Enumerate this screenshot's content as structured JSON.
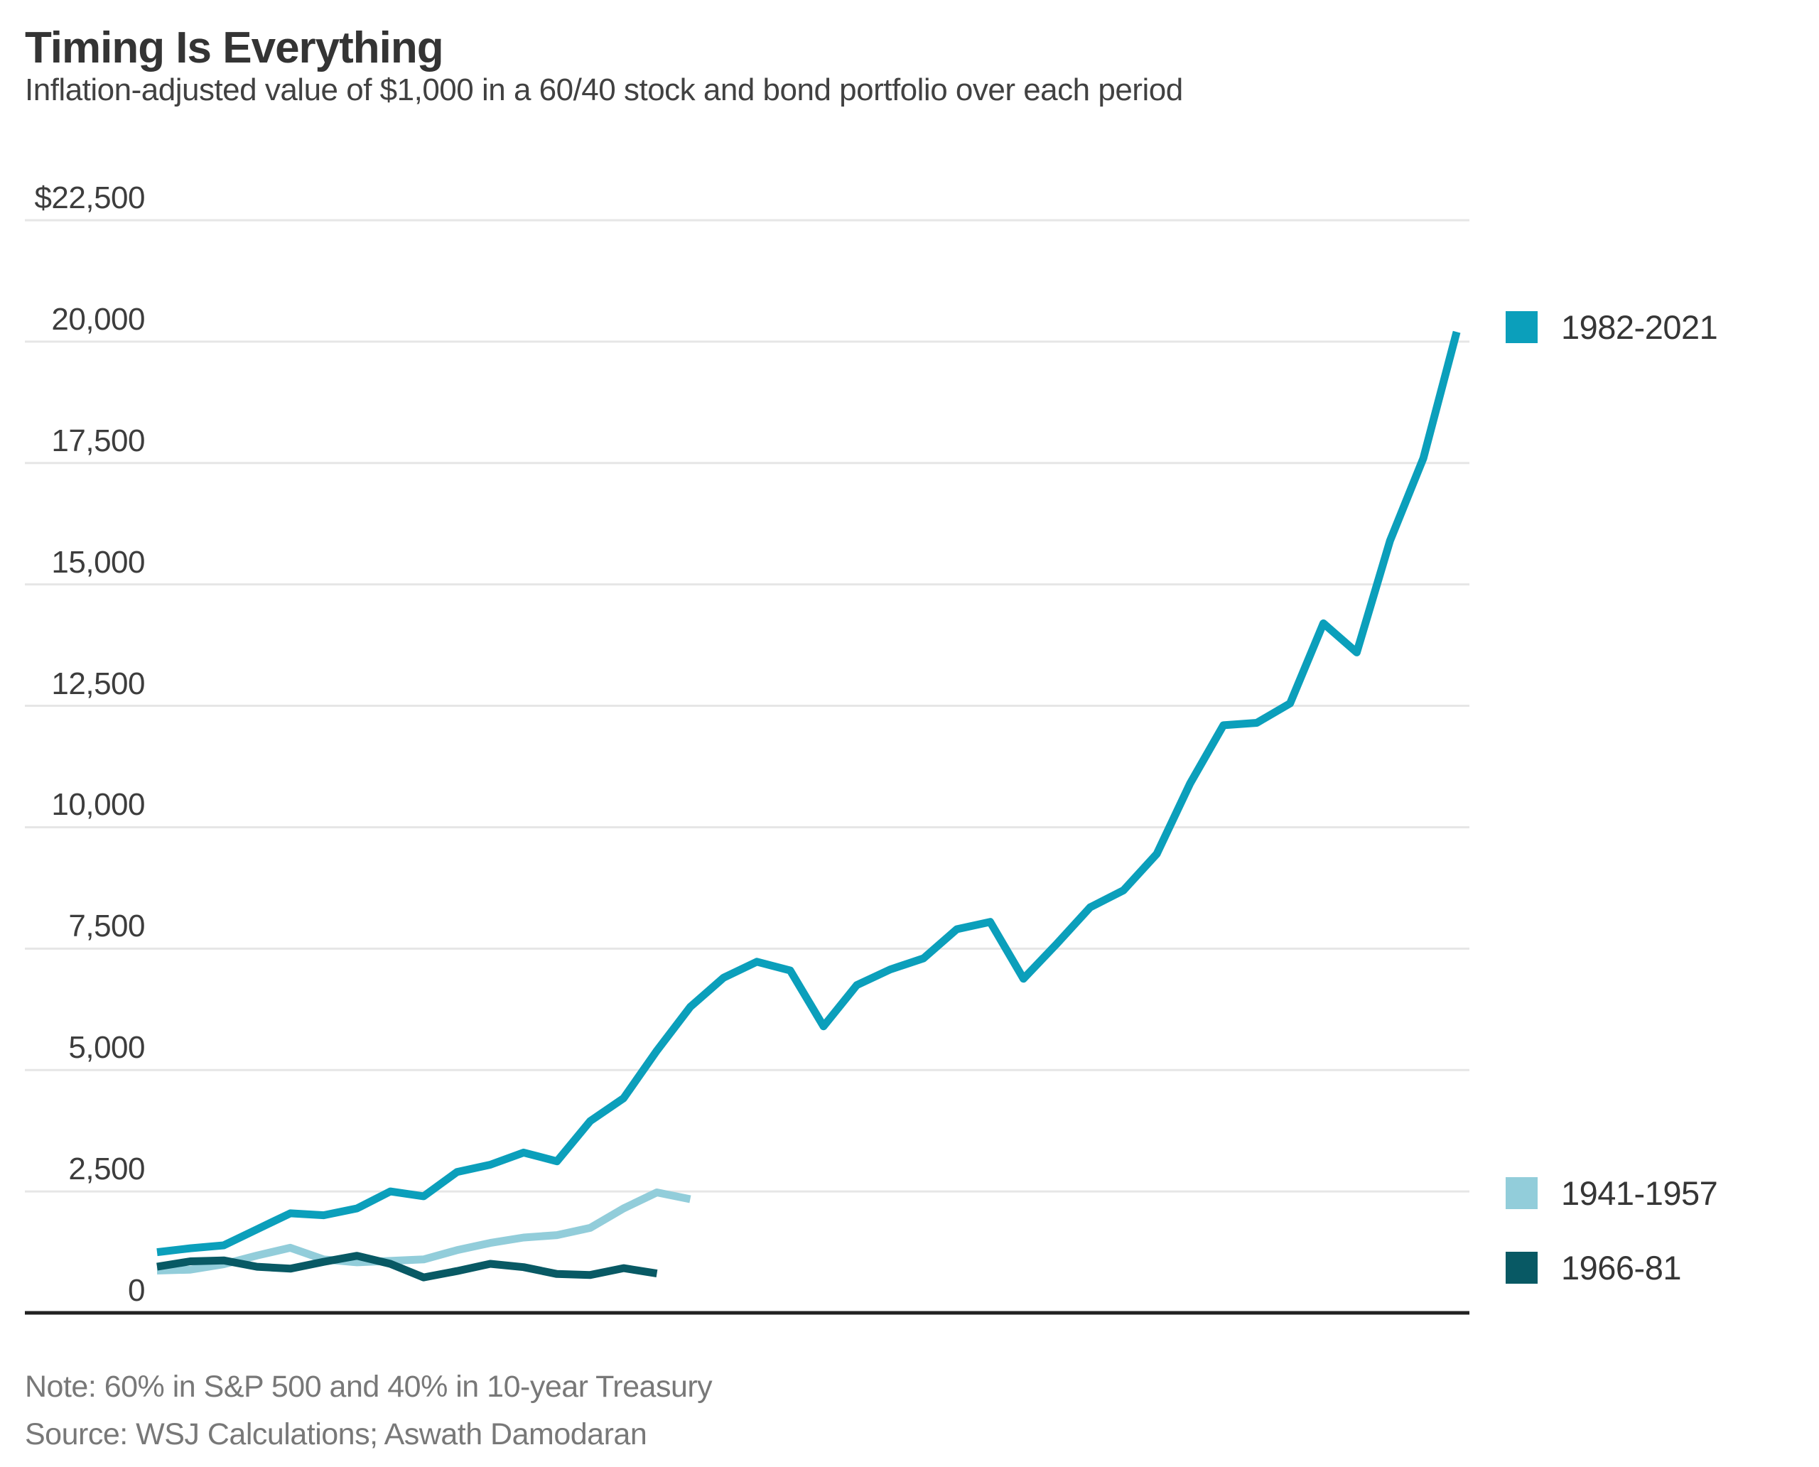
{
  "header": {
    "title": "Timing Is Everything",
    "subtitle": "Inflation-adjusted value of $1,000 in a 60/40 stock and bond portfolio over each period"
  },
  "footer": {
    "note": "Note: 60% in S&P 500 and 40% in 10-year Treasury",
    "source": "Source: WSJ Calculations; Aswath Damodaran"
  },
  "chart_data": {
    "type": "line",
    "title": "Timing Is Everything",
    "subtitle": "Inflation-adjusted value of $1,000 in a 60/40 stock and bond portfolio over each period",
    "xlabel": "",
    "ylabel": "",
    "x_unit": "years elapsed in each period (no x tick labels shown)",
    "ylim": [
      0,
      22500
    ],
    "grid": true,
    "grid_color": "#e6e6e6",
    "axis_color": "#222222",
    "legend_position": "right",
    "y_ticks": [
      {
        "value": 22500,
        "label": "$22,500"
      },
      {
        "value": 20000,
        "label": "20,000"
      },
      {
        "value": 17500,
        "label": "17,500"
      },
      {
        "value": 15000,
        "label": "15,000"
      },
      {
        "value": 12500,
        "label": "12,500"
      },
      {
        "value": 10000,
        "label": "10,000"
      },
      {
        "value": 7500,
        "label": "7,500"
      },
      {
        "value": 5000,
        "label": "5,000"
      },
      {
        "value": 2500,
        "label": "2,500"
      },
      {
        "value": 0,
        "label": "0"
      }
    ],
    "series": [
      {
        "name": "1982-2021",
        "color": "#0b9fbb",
        "start_year": 1982,
        "end_year": 2021,
        "values": [
          1250,
          1330,
          1390,
          1720,
          2050,
          2010,
          2150,
          2500,
          2400,
          2900,
          3050,
          3300,
          3120,
          3950,
          4420,
          5400,
          6300,
          6900,
          7230,
          7050,
          5900,
          6750,
          7070,
          7300,
          7900,
          8050,
          6880,
          7600,
          8350,
          8700,
          9450,
          10900,
          12100,
          12150,
          12550,
          14200,
          13600,
          15900,
          17600,
          20200
        ]
      },
      {
        "name": "1941-1957",
        "color": "#92cdda",
        "start_year": 1941,
        "end_year": 1957,
        "values": [
          870,
          890,
          1000,
          1180,
          1340,
          1100,
          1040,
          1070,
          1100,
          1290,
          1440,
          1550,
          1600,
          1750,
          2150,
          2480,
          2340
        ]
      },
      {
        "name": "1966-81",
        "color": "#085964",
        "start_year": 1966,
        "end_year": 1981,
        "values": [
          950,
          1060,
          1080,
          950,
          910,
          1050,
          1175,
          1010,
          730,
          860,
          1010,
          940,
          800,
          780,
          920,
          810
        ]
      }
    ]
  }
}
